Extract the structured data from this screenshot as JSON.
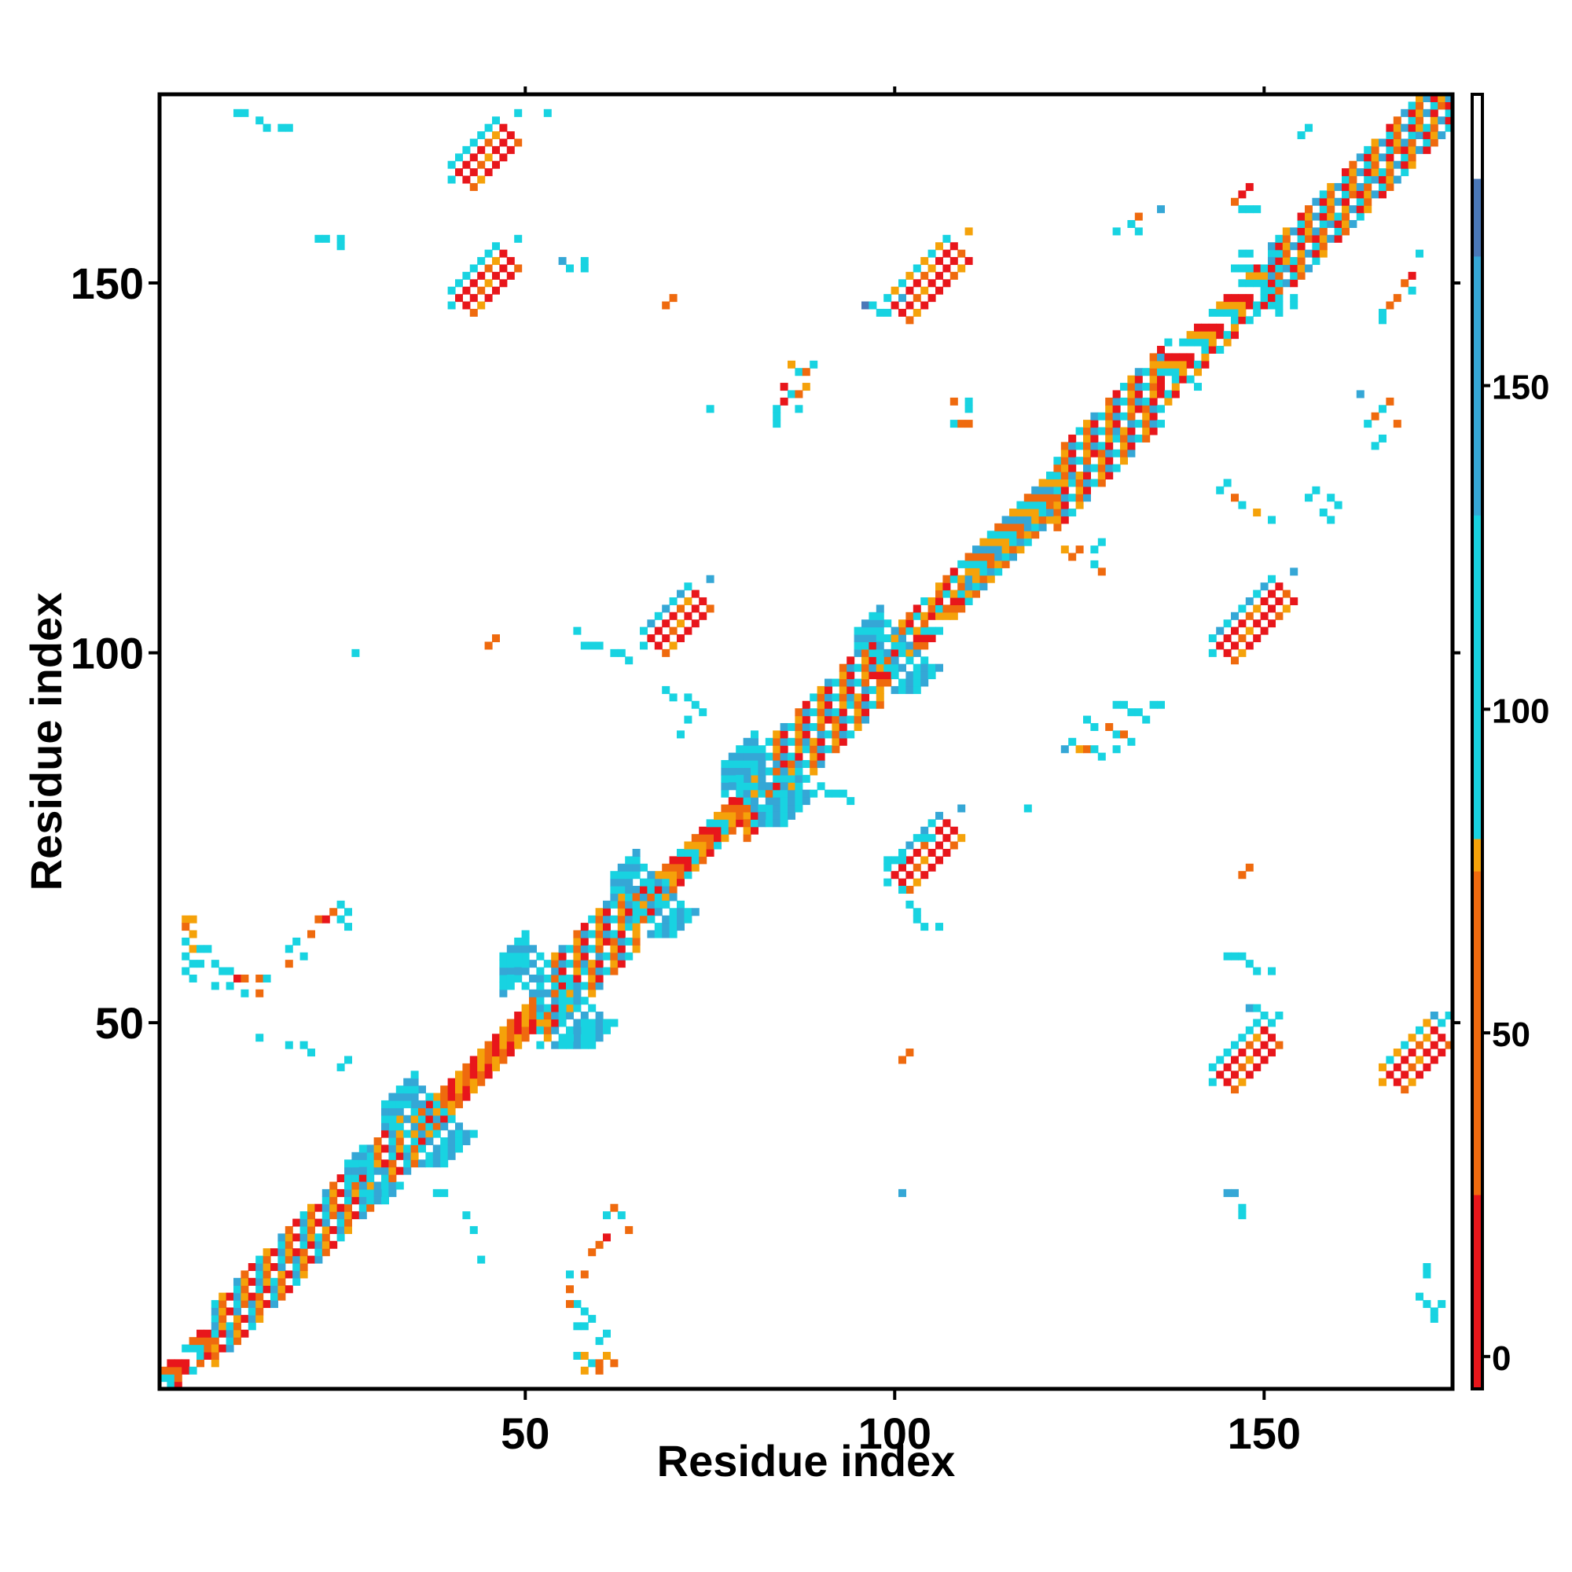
{
  "chart_data": {
    "type": "heatmap",
    "title": "",
    "xlabel": "Residue index",
    "ylabel": "Residue index",
    "xlim": [
      1,
      175
    ],
    "ylim": [
      1,
      175
    ],
    "x_ticks": [
      50,
      100,
      150
    ],
    "y_ticks": [
      50,
      100,
      150
    ],
    "colorbar": {
      "ticks": [
        0,
        50,
        100,
        150
      ],
      "range": [
        -5,
        195
      ],
      "bands": [
        {
          "from": -5,
          "to": 25,
          "color": "#e8161b"
        },
        {
          "from": 25,
          "to": 75,
          "color": "#ef6a0e"
        },
        {
          "from": 75,
          "to": 80,
          "color": "#f5a20a"
        },
        {
          "from": 80,
          "to": 130,
          "color": "#18d3e1"
        },
        {
          "from": 130,
          "to": 170,
          "color": "#35a7d6"
        },
        {
          "from": 170,
          "to": 182,
          "color": "#4a78b8"
        },
        {
          "from": 182,
          "to": 195,
          "color": "#ffffff"
        }
      ]
    },
    "palette": {
      "r": "#e8161b",
      "o": "#ef6a0e",
      "a": "#f5a20a",
      "c": "#18d3e1",
      "b": "#35a7d6",
      "n": "#4a78b8"
    },
    "diagonal_bands": [
      {
        "from": 1,
        "to": 8,
        "width": 2,
        "pattern": "rocw"
      },
      {
        "from": 8,
        "to": 35,
        "width": 4,
        "pattern": "orcawb"
      },
      {
        "from": 35,
        "to": 52,
        "width": 2,
        "pattern": "ora"
      },
      {
        "from": 52,
        "to": 65,
        "width": 5,
        "pattern": "orcabw"
      },
      {
        "from": 65,
        "to": 80,
        "width": 2,
        "pattern": "roac"
      },
      {
        "from": 80,
        "to": 98,
        "width": 5,
        "pattern": "orcabw"
      },
      {
        "from": 98,
        "to": 110,
        "width": 3,
        "pattern": "racow"
      },
      {
        "from": 110,
        "to": 122,
        "width": 3,
        "pattern": "cabo"
      },
      {
        "from": 122,
        "to": 136,
        "width": 5,
        "pattern": "orcabw"
      },
      {
        "from": 136,
        "to": 151,
        "width": 3,
        "pattern": "racw"
      },
      {
        "from": 151,
        "to": 175,
        "width": 4,
        "pattern": "obcawr"
      }
    ],
    "diagonal_blobs": [
      {
        "i": 26,
        "j": 28,
        "w": 2,
        "l": 3,
        "pattern": "bc"
      },
      {
        "i": 31,
        "j": 35,
        "w": 3,
        "l": 5,
        "pattern": "cb"
      },
      {
        "i": 47,
        "j": 53,
        "w": 5,
        "l": 4,
        "pattern": "cbc"
      },
      {
        "i": 62,
        "j": 66,
        "w": 3,
        "l": 4,
        "pattern": "cb"
      },
      {
        "i": 77,
        "j": 80,
        "w": 4,
        "l": 5,
        "pattern": "bc"
      },
      {
        "i": 95,
        "j": 99,
        "w": 3,
        "l": 4,
        "pattern": "cb"
      },
      {
        "i": 146,
        "j": 150,
        "w": 2,
        "l": 3,
        "pattern": "cw"
      }
    ],
    "contact_blocks": [
      {
        "i": 41,
        "j": 165,
        "l": 7,
        "w": 3,
        "pattern": "rrrroa",
        "spill": "cc"
      },
      {
        "i": 41,
        "j": 148,
        "l": 7,
        "w": 3,
        "pattern": "rrrroa",
        "spill": "cc"
      },
      {
        "i": 67,
        "j": 102,
        "l": 7,
        "w": 3,
        "pattern": "rrrroa",
        "spill": "cb"
      },
      {
        "i": 100,
        "j": 70,
        "l": 8,
        "w": 3,
        "pattern": "rrrroa",
        "spill": "cb"
      },
      {
        "i": 100,
        "j": 147,
        "l": 9,
        "w": 3,
        "pattern": "rrrroa",
        "spill": "ca"
      },
      {
        "i": 144,
        "j": 101,
        "l": 9,
        "w": 3,
        "pattern": "rrrroa",
        "spill": "cb"
      },
      {
        "i": 144,
        "j": 43,
        "l": 7,
        "w": 3,
        "pattern": "rrrroa",
        "spill": "cc"
      },
      {
        "i": 167,
        "j": 43,
        "l": 7,
        "w": 3,
        "pattern": "rrrroa",
        "spill": "ac"
      }
    ],
    "scatter_points": [
      [
        11,
        173,
        "c"
      ],
      [
        12,
        173,
        "c"
      ],
      [
        14,
        172,
        "c"
      ],
      [
        15,
        171,
        "c"
      ],
      [
        17,
        171,
        "c"
      ],
      [
        18,
        171,
        "c"
      ],
      [
        53,
        173,
        "c"
      ],
      [
        22,
        156,
        "c"
      ],
      [
        23,
        156,
        "c"
      ],
      [
        25,
        156,
        "c"
      ],
      [
        25,
        155,
        "c"
      ],
      [
        55,
        153,
        "b"
      ],
      [
        56,
        152,
        "c"
      ],
      [
        58,
        153,
        "c"
      ],
      [
        58,
        152,
        "c"
      ],
      [
        69,
        147,
        "o"
      ],
      [
        70,
        148,
        "o"
      ],
      [
        101,
        148,
        "b"
      ],
      [
        96,
        147,
        "n"
      ],
      [
        97,
        147,
        "c"
      ],
      [
        98,
        146,
        "c"
      ],
      [
        86,
        139,
        "a"
      ],
      [
        87,
        138,
        "c"
      ],
      [
        88,
        138,
        "o"
      ],
      [
        89,
        139,
        "c"
      ],
      [
        85,
        136,
        "r"
      ],
      [
        86,
        135,
        "c"
      ],
      [
        87,
        135,
        "o"
      ],
      [
        88,
        136,
        "a"
      ],
      [
        84,
        133,
        "c"
      ],
      [
        85,
        134,
        "r"
      ],
      [
        87,
        133,
        "c"
      ],
      [
        84,
        132,
        "c"
      ],
      [
        84,
        131,
        "c"
      ],
      [
        75,
        133,
        "c"
      ],
      [
        108,
        134,
        "o"
      ],
      [
        110,
        134,
        "c"
      ],
      [
        110,
        133,
        "c"
      ],
      [
        108,
        131,
        "c"
      ],
      [
        109,
        131,
        "o"
      ],
      [
        110,
        131,
        "o"
      ],
      [
        118,
        79,
        "c"
      ],
      [
        104,
        75,
        "c"
      ],
      [
        105,
        75,
        "c"
      ],
      [
        99,
        72,
        "c"
      ],
      [
        100,
        72,
        "c"
      ],
      [
        101,
        72,
        "c"
      ],
      [
        101,
        68,
        "c"
      ],
      [
        102,
        66,
        "c"
      ],
      [
        103,
        65,
        "c"
      ],
      [
        103,
        64,
        "c"
      ],
      [
        104,
        63,
        "c"
      ],
      [
        106,
        63,
        "c"
      ],
      [
        87,
        84,
        "c"
      ],
      [
        90,
        82,
        "c"
      ],
      [
        91,
        81,
        "c"
      ],
      [
        92,
        81,
        "c"
      ],
      [
        93,
        81,
        "c"
      ],
      [
        94,
        80,
        "c"
      ],
      [
        72,
        94,
        "c"
      ],
      [
        73,
        93,
        "c"
      ],
      [
        74,
        92,
        "c"
      ],
      [
        69,
        95,
        "c"
      ],
      [
        70,
        94,
        "c"
      ],
      [
        72,
        91,
        "c"
      ],
      [
        71,
        89,
        "c"
      ],
      [
        58,
        101,
        "c"
      ],
      [
        59,
        101,
        "c"
      ],
      [
        60,
        101,
        "c"
      ],
      [
        62,
        100,
        "c"
      ],
      [
        63,
        100,
        "c"
      ],
      [
        64,
        99,
        "c"
      ],
      [
        57,
        103,
        "c"
      ],
      [
        45,
        101,
        "o"
      ],
      [
        46,
        102,
        "o"
      ],
      [
        27,
        100,
        "c"
      ],
      [
        4,
        64,
        "a"
      ],
      [
        5,
        64,
        "a"
      ],
      [
        4,
        63,
        "o"
      ],
      [
        5,
        62,
        "a"
      ],
      [
        4,
        61,
        "c"
      ],
      [
        5,
        60,
        "a"
      ],
      [
        6,
        60,
        "c"
      ],
      [
        7,
        60,
        "c"
      ],
      [
        4,
        59,
        "c"
      ],
      [
        5,
        58,
        "c"
      ],
      [
        6,
        58,
        "c"
      ],
      [
        8,
        58,
        "c"
      ],
      [
        9,
        57,
        "c"
      ],
      [
        10,
        57,
        "c"
      ],
      [
        4,
        57,
        "c"
      ],
      [
        5,
        56,
        "c"
      ],
      [
        8,
        55,
        "c"
      ],
      [
        10,
        55,
        "c"
      ],
      [
        11,
        56,
        "r"
      ],
      [
        12,
        56,
        "o"
      ],
      [
        14,
        56,
        "o"
      ],
      [
        15,
        56,
        "c"
      ],
      [
        12,
        54,
        "c"
      ],
      [
        14,
        54,
        "o"
      ],
      [
        18,
        60,
        "c"
      ],
      [
        19,
        61,
        "c"
      ],
      [
        20,
        59,
        "c"
      ],
      [
        18,
        58,
        "o"
      ],
      [
        21,
        62,
        "o"
      ],
      [
        22,
        64,
        "o"
      ],
      [
        23,
        64,
        "r"
      ],
      [
        24,
        65,
        "o"
      ],
      [
        25,
        64,
        "c"
      ],
      [
        26,
        63,
        "c"
      ],
      [
        25,
        66,
        "c"
      ],
      [
        26,
        65,
        "c"
      ],
      [
        14,
        48,
        "c"
      ],
      [
        18,
        47,
        "c"
      ],
      [
        20,
        47,
        "c"
      ],
      [
        21,
        46,
        "c"
      ],
      [
        25,
        44,
        "c"
      ],
      [
        26,
        45,
        "c"
      ],
      [
        38,
        27,
        "c"
      ],
      [
        39,
        27,
        "c"
      ],
      [
        42,
        24,
        "c"
      ],
      [
        43,
        22,
        "c"
      ],
      [
        44,
        18,
        "c"
      ],
      [
        57,
        12,
        "c"
      ],
      [
        58,
        11,
        "c"
      ],
      [
        57,
        9,
        "c"
      ],
      [
        58,
        9,
        "c"
      ],
      [
        59,
        10,
        "c"
      ],
      [
        60,
        7,
        "c"
      ],
      [
        61,
        8,
        "c"
      ],
      [
        57,
        5,
        "c"
      ],
      [
        58,
        5,
        "a"
      ],
      [
        59,
        4,
        "c"
      ],
      [
        60,
        4,
        "o"
      ],
      [
        61,
        5,
        "a"
      ],
      [
        62,
        4,
        "o"
      ],
      [
        58,
        3,
        "a"
      ],
      [
        60,
        3,
        "o"
      ],
      [
        56,
        12,
        "o"
      ],
      [
        56,
        14,
        "o"
      ],
      [
        56,
        16,
        "c"
      ],
      [
        58,
        16,
        "o"
      ],
      [
        59,
        19,
        "o"
      ],
      [
        60,
        20,
        "o"
      ],
      [
        61,
        21,
        "r"
      ],
      [
        61,
        24,
        "c"
      ],
      [
        62,
        25,
        "o"
      ],
      [
        63,
        24,
        "c"
      ],
      [
        64,
        22,
        "o"
      ],
      [
        101,
        45,
        "o"
      ],
      [
        102,
        46,
        "o"
      ],
      [
        147,
        70,
        "o"
      ],
      [
        148,
        71,
        "o"
      ],
      [
        145,
        59,
        "c"
      ],
      [
        146,
        59,
        "c"
      ],
      [
        147,
        59,
        "c"
      ],
      [
        148,
        58,
        "c"
      ],
      [
        149,
        57,
        "c"
      ],
      [
        151,
        57,
        "c"
      ],
      [
        148,
        52,
        "b"
      ],
      [
        149,
        52,
        "c"
      ],
      [
        150,
        51,
        "c"
      ],
      [
        151,
        50,
        "c"
      ],
      [
        145,
        27,
        "b"
      ],
      [
        146,
        27,
        "b"
      ],
      [
        147,
        25,
        "c"
      ],
      [
        147,
        24,
        "c"
      ],
      [
        101,
        27,
        "b"
      ],
      [
        172,
        17,
        "c"
      ],
      [
        172,
        16,
        "c"
      ],
      [
        171,
        13,
        "c"
      ],
      [
        172,
        12,
        "c"
      ],
      [
        173,
        11,
        "c"
      ],
      [
        173,
        10,
        "c"
      ],
      [
        174,
        12,
        "c"
      ],
      [
        173,
        51,
        "b"
      ],
      [
        174,
        50,
        "c"
      ],
      [
        123,
        87,
        "b"
      ],
      [
        124,
        88,
        "c"
      ],
      [
        125,
        87,
        "a"
      ],
      [
        126,
        87,
        "o"
      ],
      [
        127,
        87,
        "c"
      ],
      [
        128,
        86,
        "c"
      ],
      [
        130,
        87,
        "c"
      ],
      [
        126,
        91,
        "c"
      ],
      [
        127,
        90,
        "c"
      ],
      [
        129,
        90,
        "o"
      ],
      [
        130,
        89,
        "c"
      ],
      [
        131,
        89,
        "o"
      ],
      [
        132,
        88,
        "c"
      ],
      [
        130,
        93,
        "c"
      ],
      [
        131,
        93,
        "c"
      ],
      [
        132,
        92,
        "c"
      ],
      [
        133,
        92,
        "c"
      ],
      [
        135,
        93,
        "c"
      ],
      [
        136,
        93,
        "c"
      ],
      [
        134,
        91,
        "c"
      ],
      [
        123,
        114,
        "a"
      ],
      [
        124,
        113,
        "o"
      ],
      [
        125,
        114,
        "o"
      ],
      [
        127,
        114,
        "c"
      ],
      [
        128,
        115,
        "c"
      ],
      [
        127,
        112,
        "c"
      ],
      [
        128,
        111,
        "o"
      ],
      [
        156,
        121,
        "c"
      ],
      [
        157,
        122,
        "c"
      ],
      [
        159,
        121,
        "c"
      ],
      [
        160,
        120,
        "c"
      ],
      [
        158,
        119,
        "c"
      ],
      [
        159,
        118,
        "c"
      ],
      [
        144,
        122,
        "c"
      ],
      [
        145,
        123,
        "c"
      ],
      [
        146,
        121,
        "o"
      ],
      [
        147,
        120,
        "c"
      ],
      [
        149,
        119,
        "a"
      ],
      [
        151,
        118,
        "c"
      ],
      [
        146,
        161,
        "o"
      ],
      [
        147,
        162,
        "r"
      ],
      [
        148,
        163,
        "r"
      ],
      [
        147,
        160,
        "c"
      ],
      [
        148,
        160,
        "c"
      ],
      [
        149,
        160,
        "c"
      ],
      [
        130,
        157,
        "c"
      ],
      [
        132,
        158,
        "c"
      ],
      [
        133,
        159,
        "o"
      ],
      [
        133,
        157,
        "c"
      ],
      [
        136,
        160,
        "b"
      ],
      [
        155,
        170,
        "c"
      ],
      [
        156,
        171,
        "c"
      ],
      [
        166,
        145,
        "c"
      ],
      [
        166,
        146,
        "c"
      ],
      [
        167,
        147,
        "o"
      ],
      [
        168,
        148,
        "o"
      ],
      [
        170,
        149,
        "c"
      ],
      [
        169,
        150,
        "o"
      ],
      [
        170,
        151,
        "r"
      ],
      [
        171,
        154,
        "c"
      ],
      [
        164,
        131,
        "c"
      ],
      [
        165,
        132,
        "o"
      ],
      [
        166,
        133,
        "c"
      ],
      [
        167,
        134,
        "o"
      ],
      [
        165,
        128,
        "c"
      ],
      [
        166,
        129,
        "c"
      ],
      [
        168,
        131,
        "o"
      ],
      [
        163,
        135,
        "b"
      ],
      [
        149,
        146,
        "c"
      ],
      [
        141,
        136,
        "c"
      ],
      [
        137,
        142,
        "c"
      ]
    ]
  }
}
